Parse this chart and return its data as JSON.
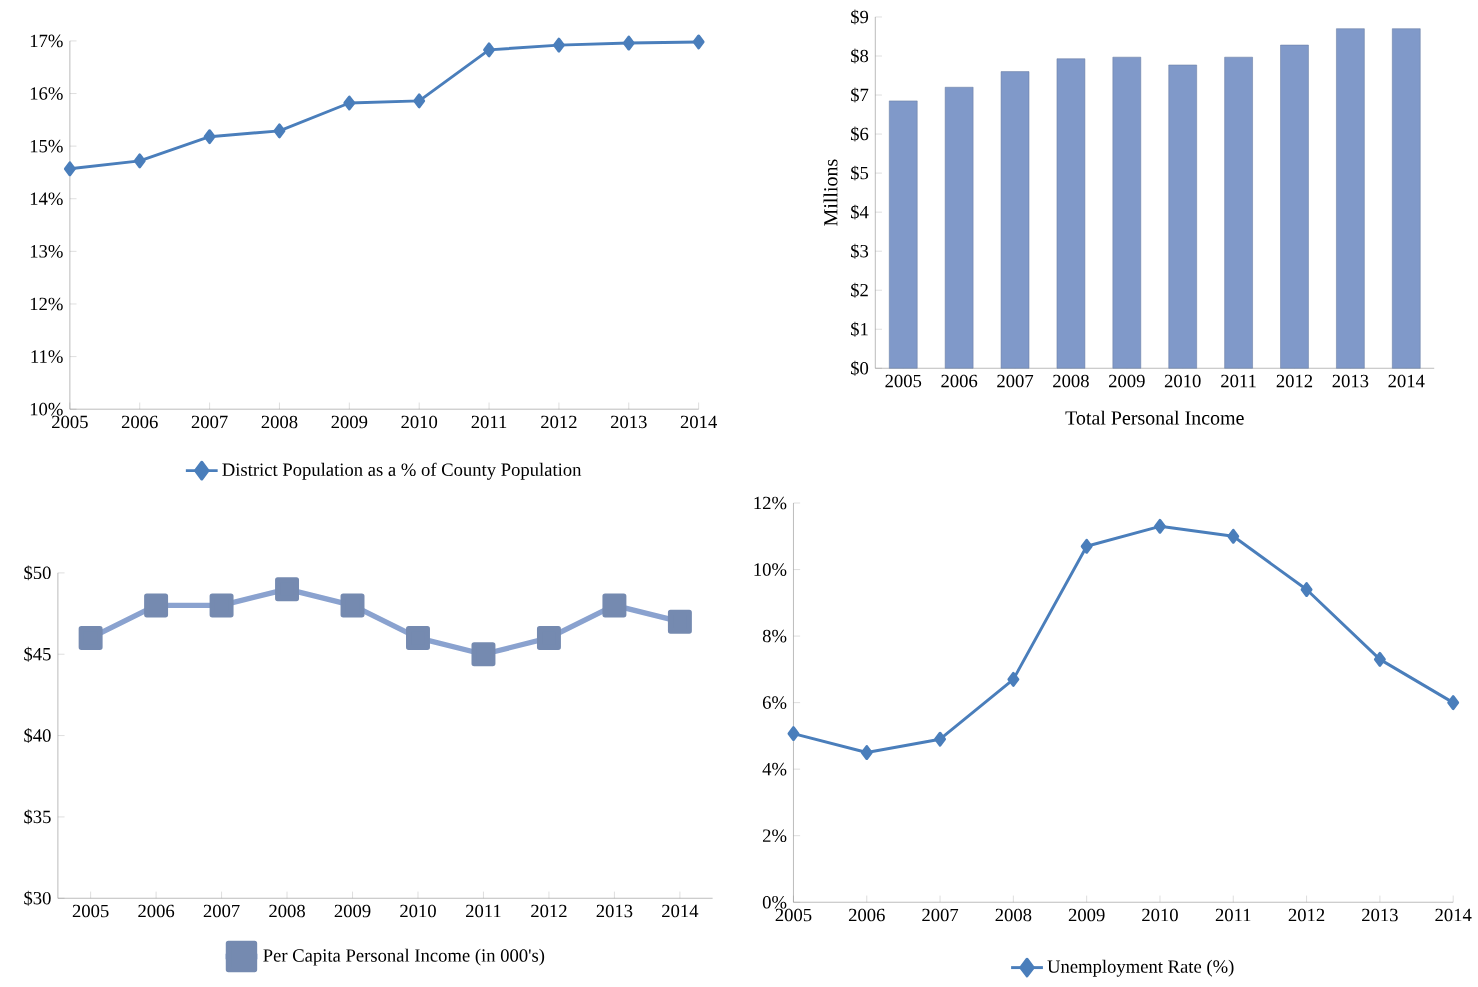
{
  "chart_data": [
    {
      "type": "line",
      "categories": [
        "2005",
        "2006",
        "2007",
        "2008",
        "2009",
        "2010",
        "2011",
        "2012",
        "2013",
        "2014"
      ],
      "series": [
        {
          "name": "District Population as a % of County Population",
          "color": "#4a7ebb",
          "values": [
            14.57,
            14.72,
            15.18,
            15.29,
            15.82,
            15.86,
            16.83,
            16.92,
            16.96,
            16.98
          ]
        }
      ],
      "ylim": [
        10,
        17
      ],
      "yticks": [
        {
          "value": 10,
          "label": "10%"
        },
        {
          "value": 11,
          "label": "11%"
        },
        {
          "value": 12,
          "label": "12%"
        },
        {
          "value": 13,
          "label": "13%"
        },
        {
          "value": 14,
          "label": "14%"
        },
        {
          "value": 15,
          "label": "15%"
        },
        {
          "value": 16,
          "label": "16%"
        },
        {
          "value": 17,
          "label": "17%"
        }
      ],
      "marker": "diamond",
      "legend": "bottom"
    },
    {
      "type": "bar",
      "categories": [
        "2005",
        "2006",
        "2007",
        "2008",
        "2009",
        "2010",
        "2011",
        "2012",
        "2013",
        "2014"
      ],
      "series": [
        {
          "color": "#8099c9",
          "values": [
            6.85,
            7.2,
            7.6,
            7.93,
            7.97,
            7.77,
            7.97,
            8.28,
            8.7,
            8.7
          ]
        }
      ],
      "ylim": [
        0,
        9
      ],
      "yticks": [
        {
          "value": 0,
          "label": "$0"
        },
        {
          "value": 1,
          "label": "$1"
        },
        {
          "value": 2,
          "label": "$2"
        },
        {
          "value": 3,
          "label": "$3"
        },
        {
          "value": 4,
          "label": "$4"
        },
        {
          "value": 5,
          "label": "$5"
        },
        {
          "value": 6,
          "label": "$6"
        },
        {
          "value": 7,
          "label": "$7"
        },
        {
          "value": 8,
          "label": "$8"
        },
        {
          "value": 9,
          "label": "$9"
        }
      ],
      "xlabel": "Total Personal Income",
      "ylabel": "Millions"
    },
    {
      "type": "line",
      "categories": [
        "2005",
        "2006",
        "2007",
        "2008",
        "2009",
        "2010",
        "2011",
        "2012",
        "2013",
        "2014"
      ],
      "series": [
        {
          "name": "Per Capita Personal Income (in 000's)",
          "color": "#8aa2cf",
          "values": [
            46,
            48,
            48,
            49,
            48,
            46,
            45,
            46,
            48,
            47
          ]
        }
      ],
      "ylim": [
        30,
        50
      ],
      "yticks": [
        {
          "value": 30,
          "label": "$30"
        },
        {
          "value": 35,
          "label": "$35"
        },
        {
          "value": 40,
          "label": "$40"
        },
        {
          "value": 45,
          "label": "$45"
        },
        {
          "value": 50,
          "label": "$50"
        }
      ],
      "marker": "square",
      "legend": "bottom"
    },
    {
      "type": "line",
      "categories": [
        "2005",
        "2006",
        "2007",
        "2008",
        "2009",
        "2010",
        "2011",
        "2012",
        "2013",
        "2014"
      ],
      "series": [
        {
          "name": "Unemployment Rate (%)",
          "color": "#4a7ebb",
          "values": [
            5.07,
            4.5,
            4.9,
            6.7,
            10.7,
            11.3,
            11.0,
            9.4,
            7.3,
            6.0
          ]
        }
      ],
      "ylim": [
        0,
        12
      ],
      "yticks": [
        {
          "value": 0,
          "label": "0%"
        },
        {
          "value": 2,
          "label": "2%"
        },
        {
          "value": 4,
          "label": "4%"
        },
        {
          "value": 6,
          "label": "6%"
        },
        {
          "value": 8,
          "label": "8%"
        },
        {
          "value": 10,
          "label": "10%"
        },
        {
          "value": 12,
          "label": "12%"
        }
      ],
      "marker": "diamond",
      "legend": "bottom"
    }
  ]
}
